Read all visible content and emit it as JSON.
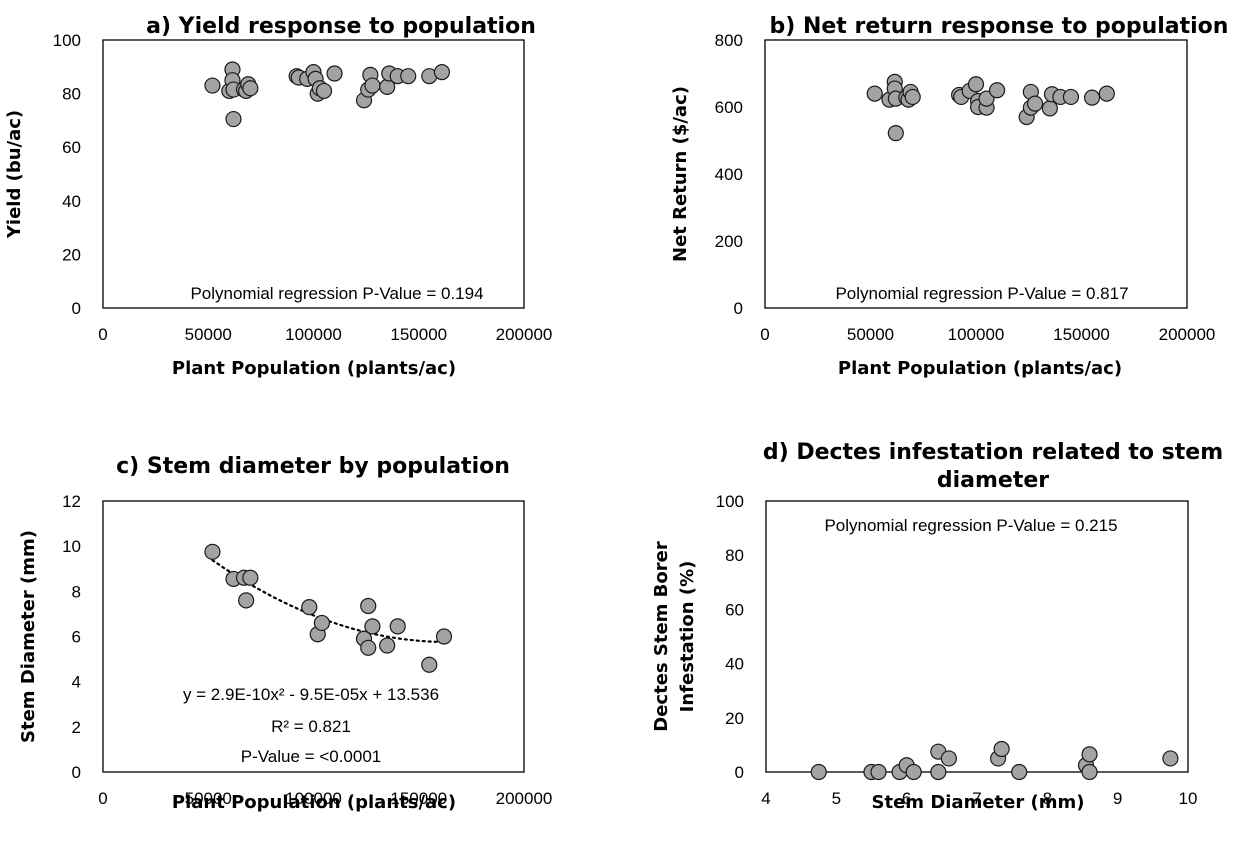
{
  "chart_data": [
    {
      "id": "a",
      "type": "scatter",
      "title": "a) Yield response to population",
      "xlabel": "Plant Population (plants/ac)",
      "ylabel": "Yield (bu/ac)",
      "xlim": [
        0,
        200000
      ],
      "ylim": [
        0,
        100
      ],
      "xticks": [
        0,
        50000,
        100000,
        150000,
        200000
      ],
      "yticks": [
        0,
        20,
        40,
        60,
        80,
        100
      ],
      "annotations": [
        "Polynomial regression P-Value = 0.194"
      ],
      "points": [
        {
          "x": 52000,
          "y": 83
        },
        {
          "x": 60000,
          "y": 81
        },
        {
          "x": 61500,
          "y": 89
        },
        {
          "x": 61500,
          "y": 85
        },
        {
          "x": 62000,
          "y": 81.5
        },
        {
          "x": 62000,
          "y": 70.5
        },
        {
          "x": 67000,
          "y": 81.5
        },
        {
          "x": 68000,
          "y": 81
        },
        {
          "x": 69000,
          "y": 83.5
        },
        {
          "x": 70000,
          "y": 82
        },
        {
          "x": 92000,
          "y": 86.5
        },
        {
          "x": 93000,
          "y": 86
        },
        {
          "x": 97000,
          "y": 85.5
        },
        {
          "x": 100000,
          "y": 88
        },
        {
          "x": 101000,
          "y": 85.5
        },
        {
          "x": 102000,
          "y": 80
        },
        {
          "x": 103000,
          "y": 82
        },
        {
          "x": 105000,
          "y": 81
        },
        {
          "x": 110000,
          "y": 87.5
        },
        {
          "x": 124000,
          "y": 77.5
        },
        {
          "x": 126000,
          "y": 81.5
        },
        {
          "x": 127000,
          "y": 87
        },
        {
          "x": 128000,
          "y": 83
        },
        {
          "x": 135000,
          "y": 82.5
        },
        {
          "x": 136000,
          "y": 87.5
        },
        {
          "x": 140000,
          "y": 86.5
        },
        {
          "x": 145000,
          "y": 86.5
        },
        {
          "x": 155000,
          "y": 86.5
        },
        {
          "x": 161000,
          "y": 88
        }
      ]
    },
    {
      "id": "b",
      "type": "scatter",
      "title": "b) Net return response to population",
      "xlabel": "Plant Population (plants/ac)",
      "ylabel": "Net Return ($/ac)",
      "xlim": [
        0,
        200000
      ],
      "ylim": [
        0,
        800
      ],
      "xticks": [
        0,
        50000,
        100000,
        150000,
        200000
      ],
      "yticks": [
        0,
        200,
        400,
        600,
        800
      ],
      "annotations": [
        "Polynomial regression P-Value = 0.817"
      ],
      "points": [
        {
          "x": 52000,
          "y": 640
        },
        {
          "x": 59000,
          "y": 622
        },
        {
          "x": 61500,
          "y": 675
        },
        {
          "x": 61500,
          "y": 655
        },
        {
          "x": 62000,
          "y": 625
        },
        {
          "x": 62000,
          "y": 522
        },
        {
          "x": 67000,
          "y": 628
        },
        {
          "x": 68000,
          "y": 622
        },
        {
          "x": 69000,
          "y": 645
        },
        {
          "x": 70000,
          "y": 630
        },
        {
          "x": 92000,
          "y": 636
        },
        {
          "x": 93000,
          "y": 630
        },
        {
          "x": 97000,
          "y": 648
        },
        {
          "x": 100000,
          "y": 668
        },
        {
          "x": 101000,
          "y": 618
        },
        {
          "x": 101000,
          "y": 600
        },
        {
          "x": 105000,
          "y": 598
        },
        {
          "x": 105000,
          "y": 625
        },
        {
          "x": 110000,
          "y": 650
        },
        {
          "x": 124000,
          "y": 570
        },
        {
          "x": 126000,
          "y": 598
        },
        {
          "x": 126000,
          "y": 645
        },
        {
          "x": 128000,
          "y": 610
        },
        {
          "x": 135000,
          "y": 596
        },
        {
          "x": 136000,
          "y": 638
        },
        {
          "x": 140000,
          "y": 630
        },
        {
          "x": 145000,
          "y": 630
        },
        {
          "x": 155000,
          "y": 628
        },
        {
          "x": 162000,
          "y": 640
        }
      ]
    },
    {
      "id": "c",
      "type": "scatter",
      "title": "c) Stem diameter by population",
      "xlabel": "Plant Population (plants/ac)",
      "ylabel": "Stem Diameter (mm)",
      "xlim": [
        0,
        200000
      ],
      "ylim": [
        0,
        12
      ],
      "xticks": [
        0,
        50000,
        100000,
        150000,
        200000
      ],
      "yticks": [
        0,
        2,
        4,
        6,
        8,
        10,
        12
      ],
      "annotations": [
        "y = 2.9E-10x² - 9.5E-05x + 13.536",
        "R² = 0.821",
        "P-Value = <0.0001"
      ],
      "trendline": {
        "type": "polynomial",
        "coefficients": [
          2.9e-10,
          -9.5e-05,
          13.536
        ],
        "x_range": [
          52000,
          162000
        ]
      },
      "points": [
        {
          "x": 52000,
          "y": 9.75
        },
        {
          "x": 62000,
          "y": 8.55
        },
        {
          "x": 67000,
          "y": 8.6
        },
        {
          "x": 68000,
          "y": 7.6
        },
        {
          "x": 70000,
          "y": 8.6
        },
        {
          "x": 98000,
          "y": 7.3
        },
        {
          "x": 102000,
          "y": 6.1
        },
        {
          "x": 104000,
          "y": 6.6
        },
        {
          "x": 124000,
          "y": 5.9
        },
        {
          "x": 126000,
          "y": 7.35
        },
        {
          "x": 126000,
          "y": 5.5
        },
        {
          "x": 128000,
          "y": 6.45
        },
        {
          "x": 135000,
          "y": 5.6
        },
        {
          "x": 140000,
          "y": 6.45
        },
        {
          "x": 155000,
          "y": 4.75
        },
        {
          "x": 162000,
          "y": 6.0
        }
      ]
    },
    {
      "id": "d",
      "type": "scatter",
      "title": "d) Dectes infestation related to stem diameter",
      "xlabel": "Stem Diameter (mm)",
      "ylabel": "Dectes Stem Borer Infestation (%)",
      "xlim": [
        4,
        10
      ],
      "ylim": [
        0,
        100
      ],
      "xticks": [
        4,
        5,
        6,
        7,
        8,
        9,
        10
      ],
      "yticks": [
        0,
        20,
        40,
        60,
        80,
        100
      ],
      "annotations": [
        "Polynomial regression P-Value = 0.215"
      ],
      "points": [
        {
          "x": 4.75,
          "y": 0
        },
        {
          "x": 5.5,
          "y": 0
        },
        {
          "x": 5.6,
          "y": 0
        },
        {
          "x": 5.9,
          "y": 0
        },
        {
          "x": 6.0,
          "y": 2.5
        },
        {
          "x": 6.1,
          "y": 0
        },
        {
          "x": 6.45,
          "y": 7.5
        },
        {
          "x": 6.45,
          "y": 0
        },
        {
          "x": 6.6,
          "y": 5
        },
        {
          "x": 7.3,
          "y": 5
        },
        {
          "x": 7.35,
          "y": 8.5
        },
        {
          "x": 7.6,
          "y": 0
        },
        {
          "x": 8.55,
          "y": 2.5
        },
        {
          "x": 8.6,
          "y": 0
        },
        {
          "x": 8.6,
          "y": 6.5
        },
        {
          "x": 9.75,
          "y": 5
        }
      ]
    }
  ]
}
